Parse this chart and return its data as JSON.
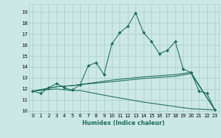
{
  "title": "",
  "xlabel": "Humidex (Indice chaleur)",
  "xlim": [
    -0.5,
    23.5
  ],
  "ylim": [
    9.8,
    19.7
  ],
  "yticks": [
    10,
    11,
    12,
    13,
    14,
    15,
    16,
    17,
    18,
    19
  ],
  "xticks": [
    0,
    1,
    2,
    3,
    4,
    5,
    6,
    7,
    8,
    9,
    10,
    11,
    12,
    13,
    14,
    15,
    16,
    17,
    18,
    19,
    20,
    21,
    22,
    23
  ],
  "bg_color": "#cce8e4",
  "grid_color": "#aaceca",
  "line_color": "#1a6b5a",
  "line1": [
    [
      0,
      11.8
    ],
    [
      1,
      11.6
    ],
    [
      2,
      12.1
    ],
    [
      3,
      12.5
    ],
    [
      4,
      12.1
    ],
    [
      5,
      11.9
    ],
    [
      6,
      12.4
    ],
    [
      7,
      14.1
    ],
    [
      8,
      14.4
    ],
    [
      9,
      13.3
    ],
    [
      10,
      16.1
    ],
    [
      11,
      17.1
    ],
    [
      12,
      17.7
    ],
    [
      13,
      18.9
    ],
    [
      14,
      17.1
    ],
    [
      15,
      16.3
    ],
    [
      16,
      15.2
    ],
    [
      17,
      15.5
    ],
    [
      18,
      16.3
    ],
    [
      19,
      13.8
    ],
    [
      20,
      13.5
    ],
    [
      21,
      11.8
    ],
    [
      22,
      11.6
    ],
    [
      23,
      10.1
    ]
  ],
  "line2": [
    [
      0,
      11.8
    ],
    [
      3,
      12.2
    ],
    [
      5,
      12.3
    ],
    [
      6,
      12.4
    ],
    [
      10,
      12.8
    ],
    [
      14,
      13.1
    ],
    [
      18,
      13.3
    ],
    [
      20,
      13.5
    ],
    [
      23,
      10.1
    ]
  ],
  "line3": [
    [
      0,
      11.8
    ],
    [
      3,
      12.2
    ],
    [
      5,
      12.3
    ],
    [
      6,
      12.4
    ],
    [
      10,
      12.65
    ],
    [
      14,
      12.95
    ],
    [
      18,
      13.15
    ],
    [
      20,
      13.4
    ],
    [
      23,
      10.1
    ]
  ],
  "line4": [
    [
      0,
      11.8
    ],
    [
      3,
      12.0
    ],
    [
      5,
      11.85
    ],
    [
      6,
      11.85
    ],
    [
      10,
      11.3
    ],
    [
      14,
      10.8
    ],
    [
      18,
      10.4
    ],
    [
      20,
      10.2
    ],
    [
      23,
      10.1
    ]
  ]
}
